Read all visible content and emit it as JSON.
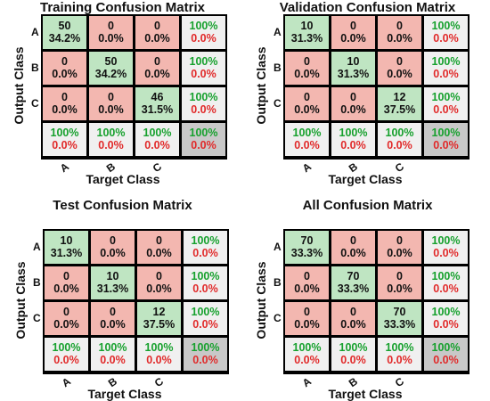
{
  "chart_data": [
    {
      "type": "table",
      "title": "Training Confusion Matrix",
      "xlabel": "Target Class",
      "ylabel": "Output Class",
      "classes": [
        "A",
        "B",
        "C"
      ],
      "cells": [
        [
          {
            "count": "50",
            "pct": "34.2%"
          },
          {
            "count": "0",
            "pct": "0.0%"
          },
          {
            "count": "0",
            "pct": "0.0%"
          }
        ],
        [
          {
            "count": "0",
            "pct": "0.0%"
          },
          {
            "count": "50",
            "pct": "34.2%"
          },
          {
            "count": "0",
            "pct": "0.0%"
          }
        ],
        [
          {
            "count": "0",
            "pct": "0.0%"
          },
          {
            "count": "0",
            "pct": "0.0%"
          },
          {
            "count": "46",
            "pct": "31.5%"
          }
        ]
      ],
      "row_summary": [
        [
          "100%",
          "0.0%"
        ],
        [
          "100%",
          "0.0%"
        ],
        [
          "100%",
          "0.0%"
        ]
      ],
      "col_summary": [
        [
          "100%",
          "0.0%"
        ],
        [
          "100%",
          "0.0%"
        ],
        [
          "100%",
          "0.0%"
        ]
      ],
      "overall": [
        "100%",
        "0.0%"
      ]
    },
    {
      "type": "table",
      "title": "Validation Confusion Matrix",
      "xlabel": "Target Class",
      "ylabel": "Output Class",
      "classes": [
        "A",
        "B",
        "C"
      ],
      "cells": [
        [
          {
            "count": "10",
            "pct": "31.3%"
          },
          {
            "count": "0",
            "pct": "0.0%"
          },
          {
            "count": "0",
            "pct": "0.0%"
          }
        ],
        [
          {
            "count": "0",
            "pct": "0.0%"
          },
          {
            "count": "10",
            "pct": "31.3%"
          },
          {
            "count": "0",
            "pct": "0.0%"
          }
        ],
        [
          {
            "count": "0",
            "pct": "0.0%"
          },
          {
            "count": "0",
            "pct": "0.0%"
          },
          {
            "count": "12",
            "pct": "37.5%"
          }
        ]
      ],
      "row_summary": [
        [
          "100%",
          "0.0%"
        ],
        [
          "100%",
          "0.0%"
        ],
        [
          "100%",
          "0.0%"
        ]
      ],
      "col_summary": [
        [
          "100%",
          "0.0%"
        ],
        [
          "100%",
          "0.0%"
        ],
        [
          "100%",
          "0.0%"
        ]
      ],
      "overall": [
        "100%",
        "0.0%"
      ]
    },
    {
      "type": "table",
      "title": "Test Confusion Matrix",
      "xlabel": "Target Class",
      "ylabel": "Output Class",
      "classes": [
        "A",
        "B",
        "C"
      ],
      "cells": [
        [
          {
            "count": "10",
            "pct": "31.3%"
          },
          {
            "count": "0",
            "pct": "0.0%"
          },
          {
            "count": "0",
            "pct": "0.0%"
          }
        ],
        [
          {
            "count": "0",
            "pct": "0.0%"
          },
          {
            "count": "10",
            "pct": "31.3%"
          },
          {
            "count": "0",
            "pct": "0.0%"
          }
        ],
        [
          {
            "count": "0",
            "pct": "0.0%"
          },
          {
            "count": "0",
            "pct": "0.0%"
          },
          {
            "count": "12",
            "pct": "37.5%"
          }
        ]
      ],
      "row_summary": [
        [
          "100%",
          "0.0%"
        ],
        [
          "100%",
          "0.0%"
        ],
        [
          "100%",
          "0.0%"
        ]
      ],
      "col_summary": [
        [
          "100%",
          "0.0%"
        ],
        [
          "100%",
          "0.0%"
        ],
        [
          "100%",
          "0.0%"
        ]
      ],
      "overall": [
        "100%",
        "0.0%"
      ]
    },
    {
      "type": "table",
      "title": "All Confusion Matrix",
      "xlabel": "Target Class",
      "ylabel": "Output Class",
      "classes": [
        "A",
        "B",
        "C"
      ],
      "cells": [
        [
          {
            "count": "70",
            "pct": "33.3%"
          },
          {
            "count": "0",
            "pct": "0.0%"
          },
          {
            "count": "0",
            "pct": "0.0%"
          }
        ],
        [
          {
            "count": "0",
            "pct": "0.0%"
          },
          {
            "count": "70",
            "pct": "33.3%"
          },
          {
            "count": "0",
            "pct": "0.0%"
          }
        ],
        [
          {
            "count": "0",
            "pct": "0.0%"
          },
          {
            "count": "0",
            "pct": "0.0%"
          },
          {
            "count": "70",
            "pct": "33.3%"
          }
        ]
      ],
      "row_summary": [
        [
          "100%",
          "0.0%"
        ],
        [
          "100%",
          "0.0%"
        ],
        [
          "100%",
          "0.0%"
        ]
      ],
      "col_summary": [
        [
          "100%",
          "0.0%"
        ],
        [
          "100%",
          "0.0%"
        ],
        [
          "100%",
          "0.0%"
        ]
      ],
      "overall": [
        "100%",
        "0.0%"
      ]
    }
  ],
  "colors": {
    "correct": "#bfe5c2",
    "incorrect": "#f3b7b0",
    "summary": "#f0f0f0",
    "overall": "#c8c8c8",
    "pct_good": "#17a12e",
    "pct_bad": "#e12a2a"
  }
}
